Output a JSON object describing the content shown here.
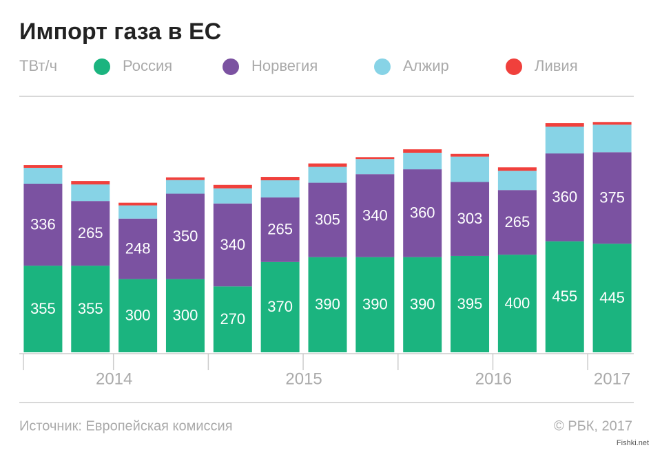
{
  "chart_data": {
    "type": "stacked_bar",
    "title": "Импорт газа в ЕС",
    "unit": "ТВт/ч",
    "categories": [
      "2014",
      "2014",
      "2014",
      "2014",
      "2015",
      "2015",
      "2015",
      "2015",
      "2016",
      "2016",
      "2016",
      "2016",
      "2017"
    ],
    "series": [
      {
        "name": "Россия",
        "color": "#1bb47f",
        "show_labels": true,
        "values": [
          355,
          355,
          300,
          300,
          270,
          370,
          390,
          390,
          390,
          395,
          400,
          455,
          445
        ]
      },
      {
        "name": "Норвегия",
        "color": "#7b52a1",
        "show_labels": true,
        "values": [
          336,
          265,
          248,
          350,
          340,
          265,
          305,
          340,
          360,
          303,
          265,
          360,
          375
        ]
      },
      {
        "name": "Алжир",
        "color": "#87d3e6",
        "show_labels": false,
        "values": [
          65,
          68,
          54,
          56,
          62,
          70,
          65,
          62,
          68,
          104,
          79,
          110,
          113
        ]
      },
      {
        "name": "Ливия",
        "color": "#f0403c",
        "show_labels": false,
        "values": [
          11,
          14,
          11,
          11,
          14,
          14,
          14,
          8,
          14,
          11,
          14,
          14,
          11
        ]
      }
    ],
    "ylim": [
      0,
      1050
    ],
    "source": "Источник: Европейская комиссия",
    "credit": "© РБК, 2017",
    "watermark": "Fishki.net"
  }
}
